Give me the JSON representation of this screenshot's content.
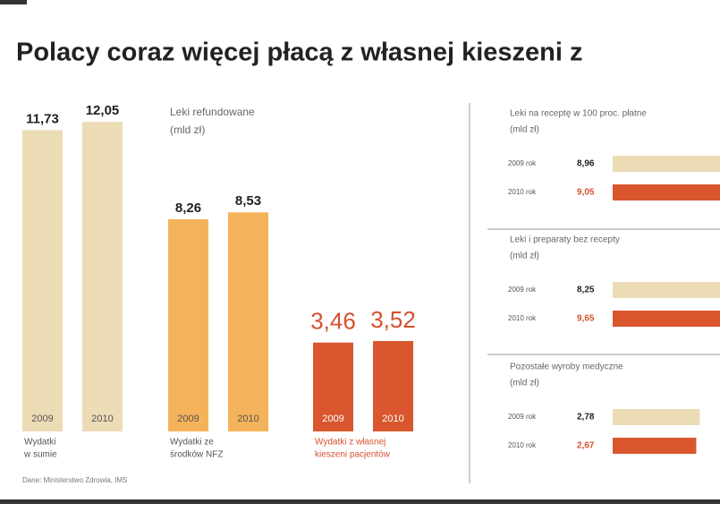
{
  "title": "Polacy coraz więcej płacą z własnej kieszeni z",
  "source": "Dane: Ministerstwo Zdrowia, IMS",
  "chart_data": [
    {
      "type": "bar",
      "subtitle": [
        "Leki refundowane",
        "(mld zł)"
      ],
      "groups": [
        {
          "name": [
            "Wydatki",
            "w sumie"
          ],
          "color": "#ecdcb6",
          "categories": [
            "2009",
            "2010"
          ],
          "values": [
            11.73,
            12.05
          ],
          "value_labels": [
            "11,73",
            "12,05"
          ]
        },
        {
          "name": [
            "Wydatki ze",
            "środków NFZ"
          ],
          "color": "#f4b35a",
          "categories": [
            "2009",
            "2010"
          ],
          "values": [
            8.26,
            8.53
          ],
          "value_labels": [
            "8,26",
            "8,53"
          ]
        },
        {
          "name": [
            "Wydatki z własnej",
            "kieszeni pacjentów"
          ],
          "color": "#d9562e",
          "categories": [
            "2009",
            "2010"
          ],
          "values": [
            3.46,
            3.52
          ],
          "value_labels": [
            "3,46",
            "3,52"
          ]
        }
      ]
    },
    {
      "type": "hbar",
      "title": [
        "Leki na receptę w 100 proc. płatne",
        "(mld zł)"
      ],
      "categories": [
        "2009 rok",
        "2010 rok"
      ],
      "colors": [
        "#ecdcb6",
        "#d9562e"
      ],
      "values": [
        8.96,
        9.05
      ],
      "value_labels": [
        "8,96",
        "9,05"
      ]
    },
    {
      "type": "hbar",
      "title": [
        "Leki i preparaty bez recepty",
        "(mld zł)"
      ],
      "categories": [
        "2009 rok",
        "2010 rok"
      ],
      "colors": [
        "#ecdcb6",
        "#d9562e"
      ],
      "values": [
        8.25,
        9.65
      ],
      "value_labels": [
        "8,25",
        "9,65"
      ]
    },
    {
      "type": "hbar",
      "title": [
        "Pozostałe wyroby medyczne",
        "(mld zł)"
      ],
      "categories": [
        "2009 rok",
        "2010 rok"
      ],
      "colors": [
        "#ecdcb6",
        "#d9562e"
      ],
      "values": [
        2.78,
        2.67
      ],
      "value_labels": [
        "2,78",
        "2,67"
      ]
    }
  ]
}
